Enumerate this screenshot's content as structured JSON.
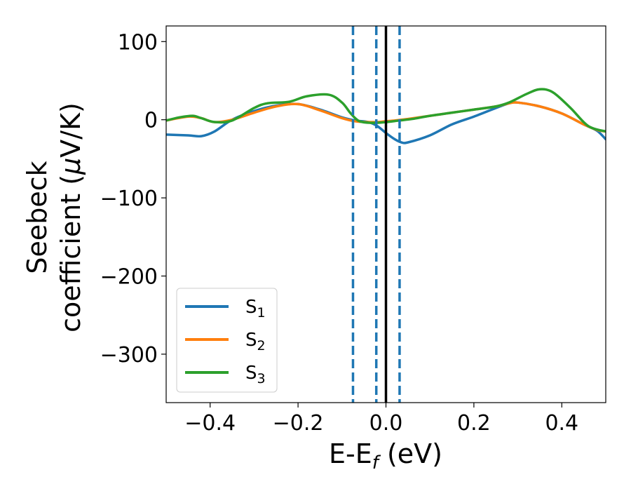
{
  "chart_data": {
    "type": "line",
    "title": "",
    "xlabel": {
      "main": "E-E",
      "sub": "f",
      "unit": " (eV)"
    },
    "ylabel": {
      "line1": "Seebeck",
      "line2": "coefficient  (",
      "mu": "μ",
      "line2_end": "V/K)"
    },
    "xlim": [
      -0.5,
      0.5
    ],
    "ylim": [
      -362,
      120
    ],
    "xticks": [
      -0.4,
      -0.2,
      0.0,
      0.2,
      0.4
    ],
    "xtick_labels": [
      "−0.4",
      "−0.2",
      "0.0",
      "0.2",
      "0.4"
    ],
    "yticks": [
      100,
      0,
      -100,
      -200,
      -300
    ],
    "ytick_labels": [
      "100",
      "0",
      "−100",
      "−200",
      "−300"
    ],
    "legend_position": "lower-left",
    "series": [
      {
        "name": "S1",
        "label_main": "S",
        "label_sub": "1",
        "color": "#1f77b4",
        "x": [
          -0.5,
          -0.45,
          -0.42,
          -0.39,
          -0.35,
          -0.3,
          -0.25,
          -0.2,
          -0.15,
          -0.1,
          -0.07,
          -0.04,
          -0.02,
          0.0,
          0.02,
          0.035,
          0.05,
          0.1,
          0.15,
          0.2,
          0.25,
          0.28,
          0.3,
          0.35,
          0.4,
          0.45,
          0.48,
          0.5
        ],
        "y": [
          -19,
          -20,
          -21,
          -15,
          0,
          11,
          18,
          20,
          13,
          3,
          -1,
          -3,
          -8,
          -17,
          -25,
          -29,
          -29,
          -20,
          -6,
          4,
          15,
          21,
          22,
          17,
          8,
          -6,
          -14,
          -25
        ]
      },
      {
        "name": "S2",
        "label_main": "S",
        "label_sub": "2",
        "color": "#ff7f0e",
        "x": [
          -0.5,
          -0.45,
          -0.42,
          -0.39,
          -0.35,
          -0.3,
          -0.25,
          -0.2,
          -0.15,
          -0.1,
          -0.07,
          -0.04,
          -0.02,
          0.0,
          0.02,
          0.035,
          0.05,
          0.1,
          0.15,
          0.2,
          0.25,
          0.28,
          0.3,
          0.35,
          0.4,
          0.45,
          0.48,
          0.5
        ],
        "y": [
          -1,
          4,
          2,
          -3,
          0,
          9,
          17,
          20,
          12,
          2,
          -2,
          -3,
          -3,
          -2,
          -1,
          0,
          1,
          5,
          9,
          13,
          17,
          21,
          22,
          17,
          8,
          -6,
          -13,
          -15
        ]
      },
      {
        "name": "S3",
        "label_main": "S",
        "label_sub": "3",
        "color": "#2ca02c",
        "x": [
          -0.5,
          -0.47,
          -0.44,
          -0.42,
          -0.39,
          -0.35,
          -0.3,
          -0.27,
          -0.22,
          -0.18,
          -0.13,
          -0.1,
          -0.08,
          -0.06,
          -0.03,
          0.0,
          0.03,
          0.06,
          0.1,
          0.15,
          0.2,
          0.25,
          0.28,
          0.32,
          0.35,
          0.38,
          0.42,
          0.46,
          0.5
        ],
        "y": [
          -1,
          3,
          5,
          2,
          -3,
          -1,
          15,
          21,
          23,
          30,
          32,
          22,
          8,
          -2,
          -4,
          -3,
          -1,
          1,
          5,
          9,
          13,
          17,
          22,
          33,
          39,
          35,
          15,
          -8,
          -15
        ]
      }
    ],
    "vlines": [
      {
        "x": -0.075,
        "style": "dashed",
        "color": "#1f77b4"
      },
      {
        "x": -0.022,
        "style": "dashed",
        "color": "#1f77b4"
      },
      {
        "x": 0.031,
        "style": "dashed",
        "color": "#1f77b4"
      },
      {
        "x": 0.0,
        "style": "solid",
        "color": "#000000"
      }
    ]
  }
}
